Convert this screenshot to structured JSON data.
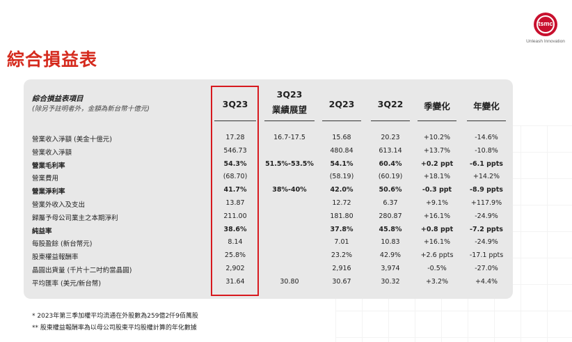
{
  "title": "綜合損益表",
  "logo": {
    "wordmark": "tsmc",
    "tagline": "Unleash Innovation"
  },
  "table": {
    "header_title": "綜合損益表項目",
    "header_note": "(除另予註明者外，金額為新台幣十億元)",
    "columns": [
      {
        "label": "3Q23"
      },
      {
        "label": "3Q23",
        "label2": "業績展望"
      },
      {
        "label": "2Q23"
      },
      {
        "label": "3Q22"
      },
      {
        "label": "季變化"
      },
      {
        "label": "年變化"
      }
    ],
    "rows": [
      {
        "label": "營業收入淨額 (美金十億元)",
        "bold": false,
        "cells": [
          "17.28",
          "16.7-17.5",
          "15.68",
          "20.23",
          "+10.2%",
          "-14.6%"
        ]
      },
      {
        "label": "營業收入淨額",
        "bold": false,
        "cells": [
          "546.73",
          "",
          "480.84",
          "613.14",
          "+13.7%",
          "-10.8%"
        ]
      },
      {
        "label": "營業毛利率",
        "bold": true,
        "cells": [
          "54.3%",
          "51.5%-53.5%",
          "54.1%",
          "60.4%",
          "+0.2 ppt",
          "-6.1 ppts"
        ]
      },
      {
        "label": "營業費用",
        "bold": false,
        "cells": [
          "(68.70)",
          "",
          "(58.19)",
          "(60.19)",
          "+18.1%",
          "+14.2%"
        ]
      },
      {
        "label": "營業淨利率",
        "bold": true,
        "cells": [
          "41.7%",
          "38%-40%",
          "42.0%",
          "50.6%",
          "-0.3 ppt",
          "-8.9 ppts"
        ]
      },
      {
        "label": "營業外收入及支出",
        "bold": false,
        "cells": [
          "13.87",
          "",
          "12.72",
          "6.37",
          "+9.1%",
          "+117.9%"
        ]
      },
      {
        "label": "歸屬予母公司業主之本期淨利",
        "bold": false,
        "cells": [
          "211.00",
          "",
          "181.80",
          "280.87",
          "+16.1%",
          "-24.9%"
        ]
      },
      {
        "label": "純益率",
        "bold": true,
        "cells": [
          "38.6%",
          "",
          "37.8%",
          "45.8%",
          "+0.8 ppt",
          "-7.2 ppts"
        ]
      },
      {
        "label": "每股盈餘 (新台幣元)",
        "bold": false,
        "cells": [
          "8.14",
          "",
          "7.01",
          "10.83",
          "+16.1%",
          "-24.9%"
        ]
      },
      {
        "label": "股東權益報酬率",
        "bold": false,
        "cells": [
          "25.8%",
          "",
          "23.2%",
          "42.9%",
          "+2.6 ppts",
          "-17.1 ppts"
        ]
      },
      {
        "label": "晶圓出貨量 (千片十二吋約當晶圓)",
        "bold": false,
        "cells": [
          "2,902",
          "",
          "2,916",
          "3,974",
          "-0.5%",
          "-27.0%"
        ]
      },
      {
        "label": "平均匯率 (美元/新台幣)",
        "bold": false,
        "cells": [
          "31.64",
          "30.80",
          "30.67",
          "30.32",
          "+3.2%",
          "+4.4%"
        ]
      }
    ]
  },
  "footnotes": [
    "*   2023年第三季加權平均流通在外股數為259億2仟9佰萬股",
    "**  股東權益報酬率為以母公司股東平均股權計算的年化數據"
  ],
  "colors": {
    "title_red": "#d52b1e",
    "highlight_red": "#d7191e",
    "panel_gray": "#e8e8e8"
  }
}
